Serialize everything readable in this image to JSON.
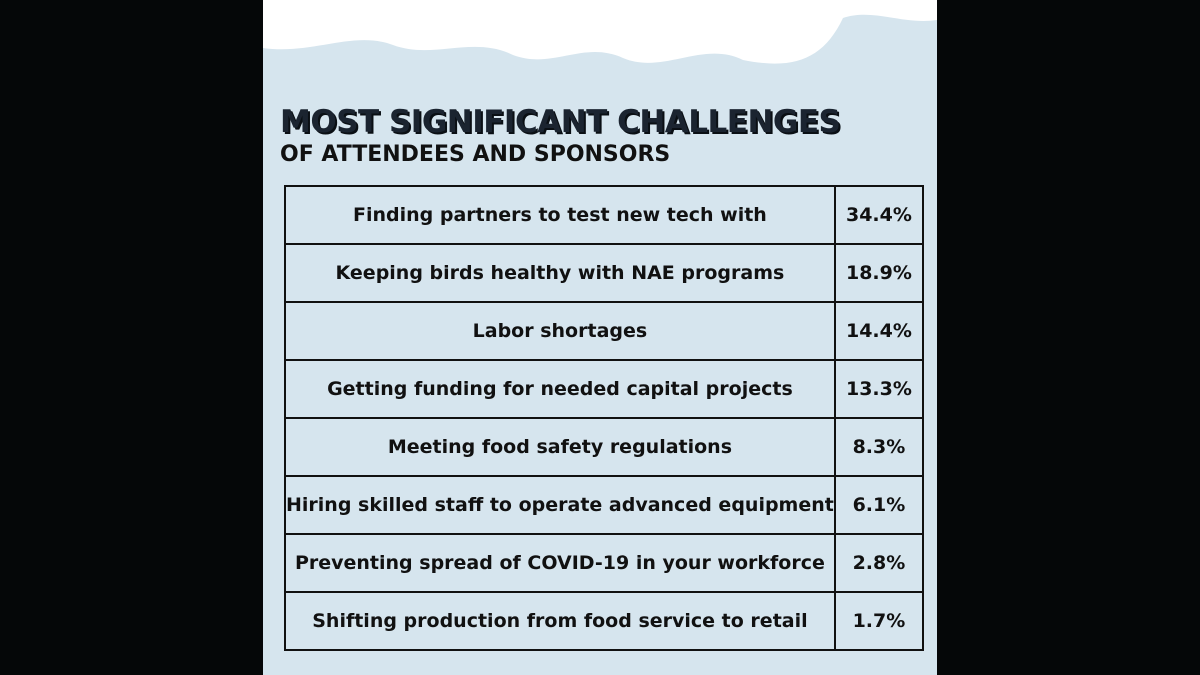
{
  "header": {
    "title": "MOST SIGNIFICANT CHALLENGES",
    "subtitle": "OF ATTENDEES AND SPONSORS"
  },
  "table": {
    "rows": [
      [
        "Finding partners to test new tech with",
        "34.4%"
      ],
      [
        "Keeping birds healthy with NAE programs",
        "18.9%"
      ],
      [
        "Labor shortages",
        "14.4%"
      ],
      [
        "Getting funding for needed capital projects",
        "13.3%"
      ],
      [
        "Meeting food safety regulations",
        "8.3%"
      ],
      [
        "Hiring skilled staff to operate advanced equipment",
        "6.1%"
      ],
      [
        "Preventing spread of COVID-19 in your workforce",
        "2.8%"
      ],
      [
        "Shifting production from food service to retail",
        "1.7%"
      ]
    ]
  }
}
